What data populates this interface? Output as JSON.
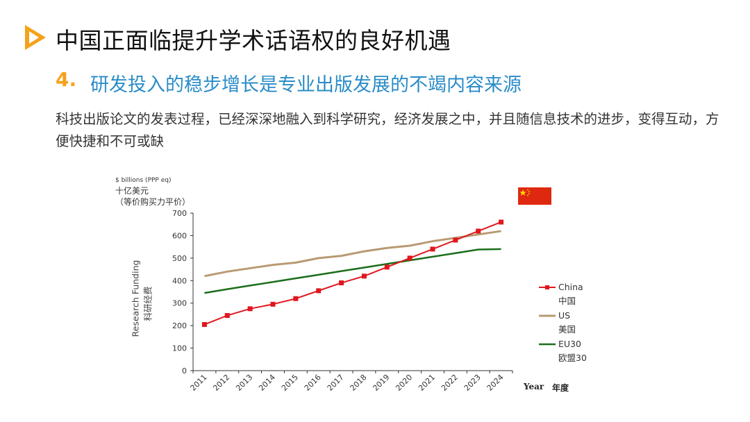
{
  "header": {
    "title": "中国正面临提升学术话语权的良好机遇",
    "sub_number": "4.",
    "sub_text": "研发投入的稳步增长是专业出版发展的不竭内容来源",
    "body": "科技出版论文的发表过程，已经深深地融入到科学研究，经济发展之中，并且随信息技术的进步，变得互动，方便快捷和不可或缺"
  },
  "colors": {
    "accent_orange": "#f5a21b",
    "subtitle_blue": "#2a8cc8",
    "china": "#e0171f",
    "us": "#b89a72",
    "eu": "#1a6e1a",
    "flag_red": "#de2910",
    "flag_star": "#ffde00"
  },
  "icons": {
    "title_bullet": "play-triangle-icon",
    "flag": "china-flag-icon"
  },
  "chart_data": {
    "type": "line",
    "unit_label_en": "$ billions (PPP eq)",
    "unit_label_cn_1": "十亿美元",
    "unit_label_cn_2": "（等价购买力平价）",
    "ylabel_en": "Research Funding",
    "ylabel_cn": "科研经费",
    "xlabel_en": "Year",
    "xlabel_cn": "年度",
    "ylim": [
      0,
      700
    ],
    "yticks": [
      "0",
      "100",
      "200",
      "300",
      "400",
      "500",
      "600",
      "700"
    ],
    "categories": [
      "2011",
      "2012",
      "2013",
      "2014",
      "2015",
      "2016",
      "2017",
      "2018",
      "2019",
      "2020",
      "2021",
      "2022",
      "2023",
      "2024"
    ],
    "legend_position": "right",
    "series": [
      {
        "name": "China",
        "name_cn": "中国",
        "color": "#e0171f",
        "marker": "square",
        "values": [
          205,
          245,
          275,
          295,
          320,
          355,
          390,
          420,
          460,
          500,
          540,
          580,
          620,
          660
        ]
      },
      {
        "name": "US",
        "name_cn": "美国",
        "color": "#b89a72",
        "marker": "none",
        "values": [
          420,
          440,
          455,
          470,
          480,
          500,
          510,
          530,
          545,
          555,
          575,
          590,
          605,
          620
        ]
      },
      {
        "name": "EU30",
        "name_cn": "欧盟30",
        "color": "#1a6e1a",
        "marker": "none",
        "values": [
          345,
          362,
          378,
          394,
          410,
          426,
          442,
          458,
          474,
          490,
          506,
          522,
          538,
          540
        ]
      }
    ]
  }
}
